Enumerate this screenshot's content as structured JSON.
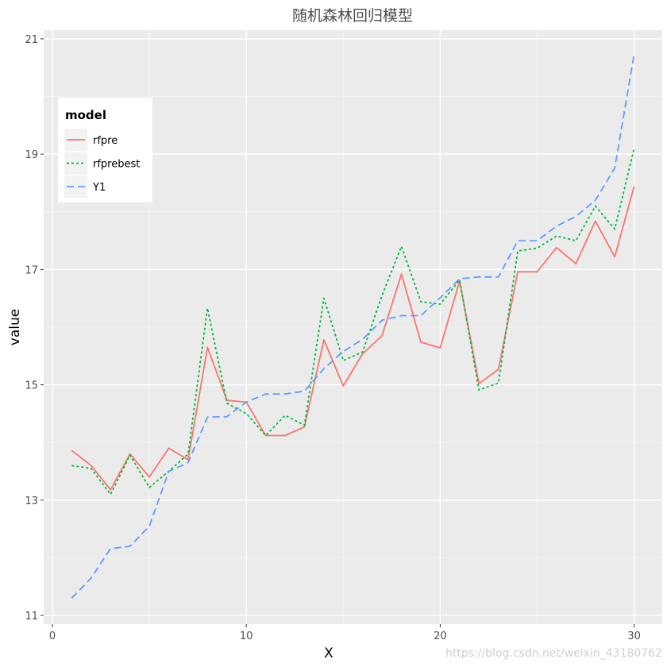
{
  "chart_data": {
    "type": "line",
    "title": "随机森林回归模型",
    "xlabel": "X",
    "ylabel": "value",
    "xlim": [
      -0.45,
      31.45
    ],
    "ylim": [
      10.85,
      21.15
    ],
    "x_ticks": [
      0,
      10,
      20,
      30
    ],
    "y_ticks": [
      11,
      13,
      15,
      17,
      19,
      21
    ],
    "grid": true,
    "legend": {
      "title": "model",
      "placement": "top-left-inside"
    },
    "x": [
      1,
      2,
      3,
      4,
      5,
      6,
      7,
      8,
      9,
      10,
      11,
      12,
      13,
      14,
      15,
      16,
      17,
      18,
      19,
      20,
      21,
      22,
      23,
      24,
      25,
      26,
      27,
      28,
      29,
      30
    ],
    "series": [
      {
        "name": "rfpre",
        "color": "#F8766D",
        "dash": "solid",
        "values": [
          13.86,
          13.6,
          13.18,
          13.8,
          13.4,
          13.9,
          13.7,
          15.65,
          14.73,
          14.7,
          14.12,
          14.12,
          14.27,
          15.78,
          14.98,
          15.54,
          15.85,
          16.92,
          15.74,
          15.64,
          16.8,
          15.02,
          15.27,
          16.96,
          16.96,
          17.38,
          17.1,
          17.84,
          17.22,
          18.44
        ]
      },
      {
        "name": "rfprebest",
        "color": "#00BA38",
        "dash": "dotted",
        "values": [
          13.6,
          13.55,
          13.1,
          13.78,
          13.22,
          13.5,
          13.8,
          16.33,
          14.68,
          14.5,
          14.12,
          14.47,
          14.3,
          16.5,
          15.42,
          15.57,
          16.55,
          17.4,
          16.44,
          16.4,
          16.82,
          14.91,
          15.03,
          17.32,
          17.37,
          17.58,
          17.5,
          18.1,
          17.7,
          19.1
        ]
      },
      {
        "name": "Y1",
        "color": "#619CFF",
        "dash": "dashed",
        "values": [
          11.3,
          11.65,
          12.16,
          12.2,
          12.55,
          13.5,
          13.65,
          14.44,
          14.45,
          14.7,
          14.84,
          14.84,
          14.89,
          15.28,
          15.58,
          15.79,
          16.12,
          16.2,
          16.2,
          16.51,
          16.84,
          16.87,
          16.87,
          17.5,
          17.5,
          17.75,
          17.92,
          18.2,
          18.76,
          20.73
        ]
      }
    ]
  },
  "watermark": "https://blog.csdn.net/weixin_43180762"
}
